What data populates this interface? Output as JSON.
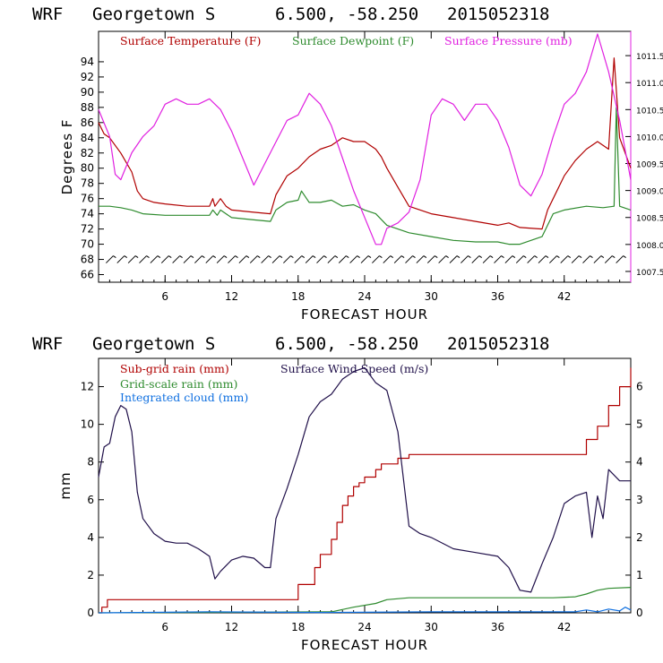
{
  "colors": {
    "temperature": "#b00000",
    "dewpoint": "#2e8b2e",
    "pressure": "#e020e0",
    "subgrid_rain": "#b00000",
    "gridscale_rain": "#2e8b2e",
    "cloud": "#1070e0",
    "wind_speed": "#20104a",
    "frame": "#000000",
    "right_axis_top": "#e020e0"
  },
  "chart_data": [
    {
      "type": "line",
      "header": {
        "model": "WRF",
        "station": "Georgetown S",
        "coords": "6.500, -58.250",
        "init_time": "2015052318"
      },
      "legend": [
        "Surface Temperature (F)",
        "Surface Dewpoint (F)",
        "Surface Pressure (mb)"
      ],
      "xlabel": "FORECAST HOUR",
      "ylabel": "Degrees F",
      "xlim": [
        0,
        48
      ],
      "ylim": [
        65,
        98
      ],
      "xticks": [
        "6",
        "12",
        "18",
        "24",
        "30",
        "36",
        "42"
      ],
      "yticks": [
        "66",
        "68",
        "70",
        "72",
        "74",
        "76",
        "78",
        "80",
        "82",
        "84",
        "86",
        "88",
        "90",
        "92",
        "94"
      ],
      "y2lim": [
        1007.3,
        1011.95
      ],
      "y2ticks": [
        "1007.5",
        "1008.0",
        "1008.5",
        "1009.0",
        "1009.5",
        "1010.0",
        "1010.5",
        "1011.0",
        "1011.5"
      ],
      "wind_barbs_at_y": 68,
      "series": [
        {
          "name": "Surface Temperature (F)",
          "color_key": "temperature",
          "axis": "left",
          "x": [
            0,
            0.5,
            1,
            2,
            3,
            3.5,
            4,
            5,
            6,
            8,
            10,
            10.3,
            10.5,
            11,
            11.5,
            12,
            14,
            15.5,
            16,
            17,
            18,
            19,
            20,
            21,
            22,
            23,
            24,
            25,
            25.5,
            26,
            27,
            28,
            30,
            32,
            34,
            36,
            37,
            38,
            40,
            40.5,
            41,
            42,
            43,
            44,
            45,
            46,
            46.5,
            47,
            47.5,
            48
          ],
          "values": [
            86,
            84.5,
            84,
            82,
            79.5,
            77,
            76,
            75.5,
            75.3,
            75,
            75,
            76,
            75,
            76,
            75,
            74.5,
            74.2,
            74,
            76.5,
            79,
            80,
            81.5,
            82.5,
            83,
            84,
            83.5,
            83.5,
            82.5,
            81.5,
            80,
            77.5,
            75,
            74,
            73.5,
            73,
            72.5,
            72.8,
            72.2,
            72,
            74.5,
            76,
            79,
            81,
            82.5,
            83.5,
            82.5,
            94.5,
            84,
            82,
            80
          ]
        },
        {
          "name": "Surface Dewpoint (F)",
          "color_key": "dewpoint",
          "axis": "left",
          "x": [
            0,
            1,
            2,
            3,
            4,
            6,
            8,
            10,
            10.3,
            10.7,
            11,
            12,
            14,
            15.5,
            16,
            17,
            18,
            18.3,
            19,
            20,
            21,
            22,
            23,
            24,
            25,
            26,
            28,
            30,
            32,
            34,
            36,
            37,
            38,
            40,
            41,
            42,
            44,
            45.5,
            46.5,
            46.7,
            47,
            48
          ],
          "values": [
            75,
            75,
            74.8,
            74.5,
            74,
            73.8,
            73.8,
            73.8,
            74.5,
            73.8,
            74.5,
            73.5,
            73.2,
            73,
            74.5,
            75.5,
            75.8,
            77,
            75.5,
            75.5,
            75.8,
            75,
            75.2,
            74.5,
            74,
            72.5,
            71.5,
            71,
            70.5,
            70.3,
            70.3,
            70,
            70,
            71,
            74,
            74.5,
            75,
            74.8,
            75,
            88,
            75,
            74.5
          ]
        },
        {
          "name": "Surface Pressure (mb)",
          "color_key": "pressure",
          "axis": "right",
          "x": [
            0,
            1,
            1.5,
            2,
            3,
            4,
            5,
            6,
            7,
            8,
            9,
            10,
            11,
            12,
            13,
            14,
            15,
            16,
            17,
            18,
            19,
            20,
            21,
            22,
            23,
            24,
            25,
            25.5,
            26,
            27,
            28,
            29,
            30,
            31,
            32,
            33,
            34,
            35,
            36,
            37,
            38,
            39,
            40,
            41,
            42,
            43,
            44,
            45,
            46,
            47,
            48
          ],
          "values": [
            1010.5,
            1010.0,
            1009.3,
            1009.2,
            1009.7,
            1010.0,
            1010.2,
            1010.6,
            1010.7,
            1010.6,
            1010.6,
            1010.7,
            1010.5,
            1010.1,
            1009.6,
            1009.1,
            1009.5,
            1009.9,
            1010.3,
            1010.4,
            1010.8,
            1010.6,
            1010.2,
            1009.6,
            1009.0,
            1008.5,
            1008.0,
            1008.0,
            1008.3,
            1008.4,
            1008.6,
            1009.2,
            1010.4,
            1010.7,
            1010.6,
            1010.3,
            1010.6,
            1010.6,
            1010.3,
            1009.8,
            1009.1,
            1008.9,
            1009.3,
            1010.0,
            1010.6,
            1010.8,
            1011.2,
            1011.9,
            1011.2,
            1010.3,
            1009.2
          ]
        }
      ]
    },
    {
      "type": "line",
      "header": {
        "model": "WRF",
        "station": "Georgetown S",
        "coords": "6.500, -58.250",
        "init_time": "2015052318"
      },
      "legend": [
        "Sub-grid rain (mm)",
        "Grid-scale rain (mm)",
        "Integrated cloud (mm)",
        "Surface Wind Speed (m/s)"
      ],
      "xlabel": "FORECAST HOUR",
      "ylabel": "mm",
      "xlim": [
        0,
        48
      ],
      "ylim": [
        0,
        13.5
      ],
      "xticks": [
        "6",
        "12",
        "18",
        "24",
        "30",
        "36",
        "42"
      ],
      "yticks": [
        "0",
        "2",
        "4",
        "6",
        "8",
        "10",
        "12"
      ],
      "y2lim": [
        0,
        6.75
      ],
      "y2ticks": [
        "0",
        "1",
        "2",
        "3",
        "4",
        "5",
        "6"
      ],
      "series": [
        {
          "name": "Sub-grid rain (mm)",
          "color_key": "subgrid_rain",
          "axis": "left",
          "step": true,
          "x": [
            0,
            0.3,
            0.8,
            17.8,
            18,
            19.5,
            20,
            21,
            21.5,
            22,
            22.5,
            23,
            23.5,
            24,
            25,
            25.5,
            26,
            27,
            27.5,
            28,
            42.5,
            44,
            45,
            46,
            47,
            48
          ],
          "values": [
            0,
            0.3,
            0.7,
            0.7,
            1.5,
            2.4,
            3.1,
            3.9,
            4.8,
            5.7,
            6.2,
            6.7,
            6.9,
            7.2,
            7.6,
            7.9,
            7.9,
            8.2,
            8.2,
            8.4,
            8.4,
            9.2,
            9.9,
            11,
            12,
            13
          ]
        },
        {
          "name": "Grid-scale rain (mm)",
          "color_key": "gridscale_rain",
          "axis": "left",
          "x": [
            0,
            21,
            23,
            25,
            26,
            28,
            41,
            43,
            44,
            45,
            46,
            48
          ],
          "values": [
            0,
            0.05,
            0.3,
            0.5,
            0.7,
            0.8,
            0.8,
            0.85,
            1.0,
            1.2,
            1.3,
            1.35
          ]
        },
        {
          "name": "Integrated cloud (mm)",
          "color_key": "cloud",
          "axis": "left",
          "x": [
            0,
            10,
            20,
            30,
            40,
            43,
            44,
            45,
            46,
            47,
            47.5,
            48
          ],
          "values": [
            0,
            0.05,
            0.02,
            0.05,
            0.05,
            0.05,
            0.15,
            0.05,
            0.2,
            0.1,
            0.3,
            0.15
          ]
        },
        {
          "name": "Surface Wind Speed (m/s)",
          "color_key": "wind_speed",
          "axis": "right",
          "x": [
            0,
            0.5,
            1,
            1.5,
            2,
            2.5,
            3,
            3.5,
            4,
            5,
            6,
            7,
            8,
            9,
            10,
            10.5,
            11,
            12,
            13,
            14,
            15,
            15.5,
            16,
            17,
            18,
            19,
            20,
            21,
            22,
            23,
            24,
            25,
            26,
            27,
            28,
            29,
            30,
            32,
            34,
            36,
            37,
            38,
            39,
            40,
            41,
            42,
            43,
            44,
            44.5,
            45,
            45.5,
            46,
            47,
            48
          ],
          "values": [
            3.6,
            4.4,
            4.5,
            5.2,
            5.5,
            5.4,
            4.8,
            3.2,
            2.5,
            2.1,
            1.9,
            1.85,
            1.85,
            1.7,
            1.5,
            0.9,
            1.1,
            1.4,
            1.5,
            1.45,
            1.2,
            1.2,
            2.5,
            3.3,
            4.2,
            5.2,
            5.6,
            5.8,
            6.2,
            6.4,
            6.5,
            6.1,
            5.9,
            4.8,
            2.3,
            2.1,
            2.0,
            1.7,
            1.6,
            1.5,
            1.2,
            0.6,
            0.55,
            1.3,
            2.0,
            2.9,
            3.1,
            3.2,
            2.0,
            3.1,
            2.5,
            3.8,
            3.5,
            3.5
          ]
        }
      ]
    }
  ]
}
